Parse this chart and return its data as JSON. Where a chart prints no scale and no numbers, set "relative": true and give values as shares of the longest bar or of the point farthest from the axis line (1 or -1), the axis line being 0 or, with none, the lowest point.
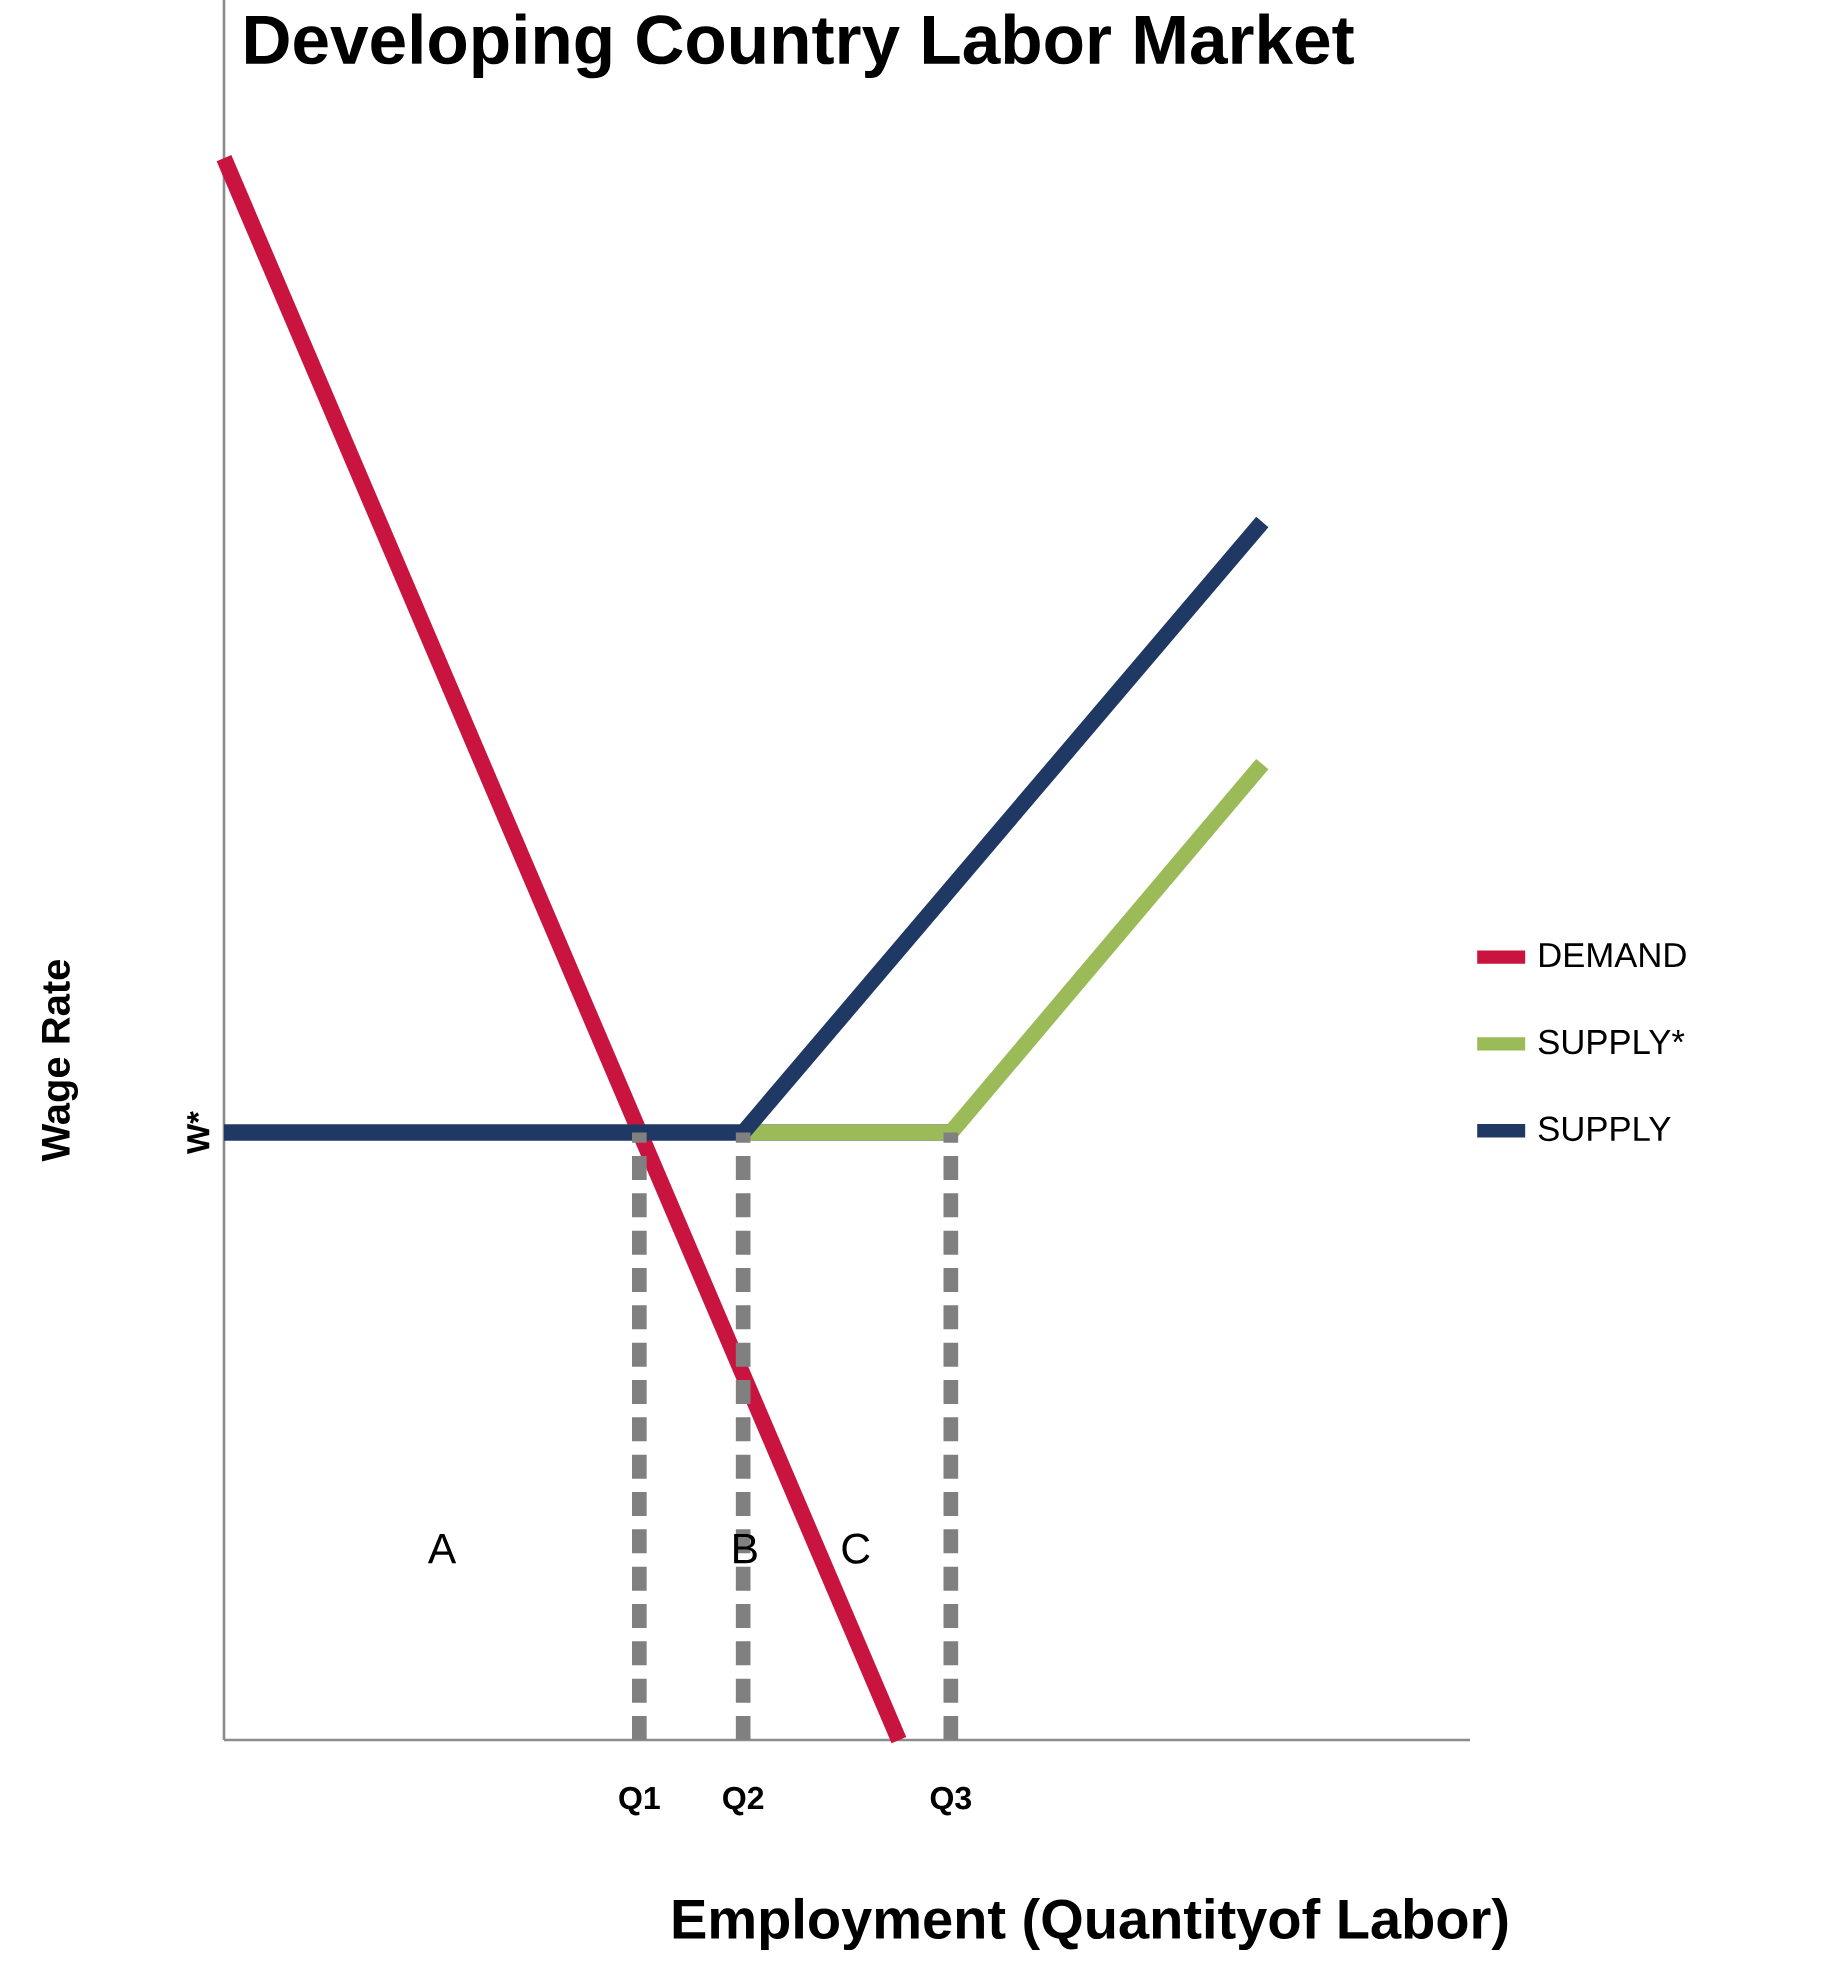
{
  "chart_data": {
    "type": "line",
    "relative": true,
    "title": "Developing Country Labor Market",
    "xlabel": "Employment (Quantityof Labor)",
    "ylabel": "Wage Rate",
    "categories": [
      null,
      null,
      null,
      null,
      null,
      null,
      null,
      null,
      "Q1",
      null,
      "Q2",
      null,
      null,
      null,
      "Q3",
      null,
      null,
      null,
      null,
      null,
      null,
      null,
      null,
      null,
      null
    ],
    "series": [
      {
        "name": "DEMAND",
        "color": "#c8143f",
        "values": [
          1,
          null,
          null,
          null,
          null,
          null,
          null,
          null,
          null,
          null,
          null,
          null,
          null,
          0,
          null,
          null,
          null,
          null,
          null,
          null,
          null,
          null,
          null,
          null,
          null
        ]
      },
      {
        "name": "SUPPLY*",
        "color": "#9bbb59",
        "values": [
          null,
          null,
          null,
          null,
          null,
          null,
          null,
          null,
          null,
          null,
          0.384,
          null,
          null,
          null,
          0.384,
          null,
          null,
          null,
          null,
          null,
          0.617,
          null,
          null,
          null,
          null
        ]
      },
      {
        "name": "SUPPLY",
        "color": "#1f3864",
        "values": [
          0.384,
          null,
          null,
          null,
          null,
          null,
          null,
          null,
          null,
          null,
          0.384,
          null,
          null,
          null,
          null,
          null,
          null,
          null,
          null,
          null,
          0.77,
          null,
          null,
          null,
          null
        ]
      }
    ],
    "ref_lines": [
      {
        "axis": "y",
        "value": 0.384,
        "label": "W*",
        "color": "#1f3864"
      },
      {
        "axis": "x",
        "value": "Q1",
        "color": "#808080",
        "line_style": "dashed"
      },
      {
        "axis": "x",
        "value": "Q2",
        "color": "#808080",
        "line_style": "dashed"
      },
      {
        "axis": "x",
        "value": "Q3",
        "color": "#808080",
        "line_style": "dashed"
      }
    ],
    "annotations": [
      "A",
      "B",
      "C"
    ],
    "legend": "right",
    "grid": false,
    "marker": "none",
    "line_style": "solid"
  }
}
